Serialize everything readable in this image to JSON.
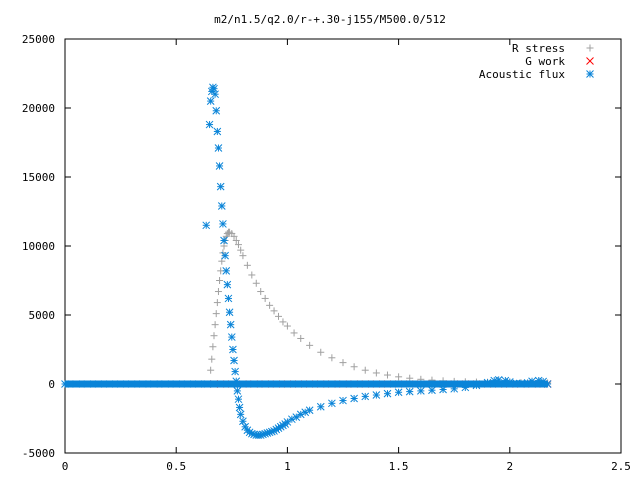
{
  "chart_data": {
    "type": "scatter",
    "title": "m2/n1.5/q2.0/r-+.30-j155/M500.0/512",
    "xlabel": "",
    "ylabel": "",
    "xlim": [
      0,
      2.5
    ],
    "ylim": [
      -5000,
      25000
    ],
    "grid": false,
    "legend_position": "top-right",
    "x_ticks": [
      {
        "value": 0,
        "label": "0"
      },
      {
        "value": 0.5,
        "label": "0.5"
      },
      {
        "value": 1,
        "label": "1"
      },
      {
        "value": 1.5,
        "label": "1.5"
      },
      {
        "value": 2,
        "label": "2"
      },
      {
        "value": 2.5,
        "label": "2.5"
      }
    ],
    "y_ticks": [
      {
        "value": -5000,
        "label": "-5000"
      },
      {
        "value": 0,
        "label": "0"
      },
      {
        "value": 5000,
        "label": "5000"
      },
      {
        "value": 10000,
        "label": "10000"
      },
      {
        "value": 15000,
        "label": "15000"
      },
      {
        "value": 20000,
        "label": "20000"
      },
      {
        "value": 25000,
        "label": "25000"
      }
    ],
    "series": [
      {
        "name": "R stress",
        "marker": "plus",
        "color": "#a0a0a0",
        "points": [
          [
            0.0,
            0
          ],
          [
            0.1,
            0
          ],
          [
            0.2,
            0
          ],
          [
            0.3,
            0
          ],
          [
            0.4,
            0
          ],
          [
            0.5,
            0
          ],
          [
            0.6,
            0
          ],
          [
            0.65,
            0
          ],
          [
            0.655,
            1000
          ],
          [
            0.66,
            1800
          ],
          [
            0.665,
            2700
          ],
          [
            0.67,
            3500
          ],
          [
            0.675,
            4300
          ],
          [
            0.68,
            5100
          ],
          [
            0.685,
            5900
          ],
          [
            0.69,
            6700
          ],
          [
            0.695,
            7500
          ],
          [
            0.7,
            8200
          ],
          [
            0.705,
            8900
          ],
          [
            0.71,
            9500
          ],
          [
            0.715,
            10000
          ],
          [
            0.72,
            10400
          ],
          [
            0.725,
            10700
          ],
          [
            0.73,
            10900
          ],
          [
            0.735,
            11000
          ],
          [
            0.74,
            11000
          ],
          [
            0.75,
            10900
          ],
          [
            0.76,
            10700
          ],
          [
            0.77,
            10400
          ],
          [
            0.78,
            10100
          ],
          [
            0.79,
            9700
          ],
          [
            0.8,
            9300
          ],
          [
            0.82,
            8600
          ],
          [
            0.84,
            7900
          ],
          [
            0.86,
            7300
          ],
          [
            0.88,
            6700
          ],
          [
            0.9,
            6200
          ],
          [
            0.92,
            5700
          ],
          [
            0.94,
            5300
          ],
          [
            0.96,
            4900
          ],
          [
            0.98,
            4500
          ],
          [
            1.0,
            4200
          ],
          [
            1.03,
            3700
          ],
          [
            1.06,
            3300
          ],
          [
            1.1,
            2800
          ],
          [
            1.15,
            2300
          ],
          [
            1.2,
            1900
          ],
          [
            1.25,
            1550
          ],
          [
            1.3,
            1250
          ],
          [
            1.35,
            1000
          ],
          [
            1.4,
            800
          ],
          [
            1.45,
            650
          ],
          [
            1.5,
            520
          ],
          [
            1.55,
            420
          ],
          [
            1.6,
            340
          ],
          [
            1.65,
            280
          ],
          [
            1.7,
            230
          ],
          [
            1.75,
            190
          ],
          [
            1.8,
            160
          ],
          [
            1.85,
            140
          ],
          [
            1.9,
            130
          ],
          [
            1.95,
            120
          ],
          [
            2.0,
            110
          ],
          [
            2.05,
            100
          ],
          [
            2.1,
            90
          ],
          [
            2.15,
            80
          ],
          [
            2.17,
            80
          ]
        ]
      },
      {
        "name": "G work",
        "marker": "cross",
        "color": "#ff0000",
        "points": [
          [
            0.67,
            0
          ],
          [
            0.7,
            0
          ],
          [
            0.75,
            0
          ],
          [
            0.8,
            0
          ],
          [
            0.85,
            0
          ],
          [
            0.9,
            0
          ],
          [
            0.95,
            0
          ],
          [
            1.0,
            0
          ],
          [
            1.05,
            0
          ],
          [
            1.1,
            0
          ],
          [
            1.15,
            0
          ],
          [
            1.2,
            0
          ],
          [
            1.25,
            0
          ],
          [
            1.3,
            0
          ],
          [
            1.35,
            0
          ],
          [
            1.4,
            0
          ],
          [
            1.45,
            0
          ],
          [
            1.5,
            0
          ],
          [
            1.55,
            0
          ],
          [
            1.6,
            0
          ],
          [
            1.65,
            0
          ],
          [
            1.7,
            0
          ],
          [
            1.75,
            0
          ],
          [
            1.8,
            0
          ],
          [
            1.85,
            0
          ],
          [
            1.9,
            0
          ],
          [
            1.95,
            0
          ],
          [
            2.0,
            0
          ],
          [
            2.05,
            0
          ],
          [
            2.1,
            0
          ],
          [
            2.15,
            0
          ],
          [
            2.17,
            0
          ]
        ]
      },
      {
        "name": "Acoustic flux",
        "marker": "star",
        "color": "#0a84d8",
        "points": [
          [
            0.0,
            0
          ],
          [
            0.05,
            0
          ],
          [
            0.1,
            0
          ],
          [
            0.15,
            0
          ],
          [
            0.2,
            0
          ],
          [
            0.25,
            0
          ],
          [
            0.3,
            0
          ],
          [
            0.35,
            0
          ],
          [
            0.4,
            0
          ],
          [
            0.45,
            0
          ],
          [
            0.5,
            0
          ],
          [
            0.55,
            0
          ],
          [
            0.6,
            0
          ],
          [
            0.64,
            0
          ],
          [
            0.635,
            11500
          ],
          [
            0.65,
            18800
          ],
          [
            0.655,
            20500
          ],
          [
            0.66,
            21200
          ],
          [
            0.665,
            21500
          ],
          [
            0.67,
            21400
          ],
          [
            0.675,
            21000
          ],
          [
            0.68,
            19800
          ],
          [
            0.685,
            18300
          ],
          [
            0.69,
            17100
          ],
          [
            0.695,
            15800
          ],
          [
            0.7,
            14300
          ],
          [
            0.705,
            12900
          ],
          [
            0.71,
            11600
          ],
          [
            0.715,
            10400
          ],
          [
            0.72,
            9300
          ],
          [
            0.725,
            8200
          ],
          [
            0.73,
            7200
          ],
          [
            0.735,
            6200
          ],
          [
            0.74,
            5200
          ],
          [
            0.745,
            4300
          ],
          [
            0.75,
            3400
          ],
          [
            0.755,
            2500
          ],
          [
            0.76,
            1700
          ],
          [
            0.765,
            900
          ],
          [
            0.77,
            200
          ],
          [
            0.775,
            -500
          ],
          [
            0.78,
            -1100
          ],
          [
            0.785,
            -1700
          ],
          [
            0.79,
            -2200
          ],
          [
            0.8,
            -2700
          ],
          [
            0.81,
            -3100
          ],
          [
            0.82,
            -3350
          ],
          [
            0.83,
            -3500
          ],
          [
            0.84,
            -3600
          ],
          [
            0.85,
            -3650
          ],
          [
            0.86,
            -3700
          ],
          [
            0.87,
            -3700
          ],
          [
            0.88,
            -3700
          ],
          [
            0.89,
            -3650
          ],
          [
            0.9,
            -3600
          ],
          [
            0.91,
            -3550
          ],
          [
            0.92,
            -3500
          ],
          [
            0.93,
            -3450
          ],
          [
            0.94,
            -3400
          ],
          [
            0.95,
            -3300
          ],
          [
            0.96,
            -3200
          ],
          [
            0.97,
            -3100
          ],
          [
            0.98,
            -3000
          ],
          [
            0.99,
            -2900
          ],
          [
            1.0,
            -2750
          ],
          [
            1.02,
            -2550
          ],
          [
            1.04,
            -2400
          ],
          [
            1.06,
            -2200
          ],
          [
            1.08,
            -2050
          ],
          [
            1.1,
            -1900
          ],
          [
            1.15,
            -1650
          ],
          [
            1.2,
            -1400
          ],
          [
            1.25,
            -1200
          ],
          [
            1.3,
            -1050
          ],
          [
            1.35,
            -900
          ],
          [
            1.4,
            -800
          ],
          [
            1.45,
            -700
          ],
          [
            1.5,
            -600
          ],
          [
            1.55,
            -550
          ],
          [
            1.6,
            -500
          ],
          [
            1.65,
            -450
          ],
          [
            1.7,
            -400
          ],
          [
            1.75,
            -350
          ],
          [
            1.8,
            -250
          ],
          [
            1.85,
            -100
          ],
          [
            1.9,
            100
          ],
          [
            1.93,
            250
          ],
          [
            1.95,
            300
          ],
          [
            1.98,
            250
          ],
          [
            2.0,
            150
          ],
          [
            2.03,
            50
          ],
          [
            2.05,
            20
          ],
          [
            2.08,
            80
          ],
          [
            2.1,
            200
          ],
          [
            2.13,
            250
          ],
          [
            2.15,
            180
          ],
          [
            2.17,
            0
          ]
        ]
      }
    ]
  }
}
